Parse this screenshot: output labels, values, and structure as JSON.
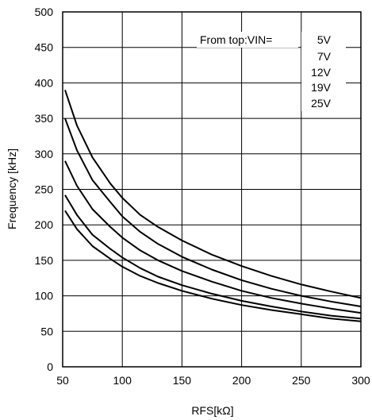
{
  "chart_data": {
    "type": "line",
    "xlabel": "RFS[kΩ]",
    "ylabel": "Frequency [kHz]",
    "xlim": [
      50,
      300
    ],
    "ylim": [
      0,
      500
    ],
    "xticks": [
      50,
      100,
      150,
      200,
      250,
      300
    ],
    "yticks": [
      0,
      50,
      100,
      150,
      200,
      250,
      300,
      350,
      400,
      450,
      500
    ],
    "grid": true,
    "annotation": {
      "prefix": "From top:VIN=",
      "labels": [
        "5V",
        "7V",
        "12V",
        "19V",
        "25V"
      ]
    },
    "series": [
      {
        "label": "5V",
        "x": [
          52,
          62,
          75,
          90,
          100,
          115,
          130,
          150,
          175,
          200,
          225,
          250,
          275,
          300
        ],
        "y": [
          390,
          340,
          295,
          258,
          238,
          214,
          197,
          178,
          158,
          142,
          128,
          116,
          106,
          97
        ]
      },
      {
        "label": "7V",
        "x": [
          52,
          62,
          75,
          90,
          100,
          115,
          130,
          150,
          175,
          200,
          225,
          250,
          275,
          300
        ],
        "y": [
          350,
          305,
          263,
          232,
          212,
          190,
          173,
          155,
          137,
          122,
          110,
          100,
          92,
          85
        ]
      },
      {
        "label": "12V",
        "x": [
          52,
          62,
          75,
          90,
          100,
          115,
          130,
          150,
          175,
          200,
          225,
          250,
          275,
          300
        ],
        "y": [
          290,
          255,
          222,
          197,
          182,
          164,
          150,
          135,
          120,
          107,
          97,
          89,
          82,
          76
        ]
      },
      {
        "label": "19V",
        "x": [
          52,
          62,
          75,
          90,
          100,
          115,
          130,
          150,
          175,
          200,
          225,
          250,
          275,
          300
        ],
        "y": [
          242,
          214,
          186,
          166,
          154,
          139,
          127,
          115,
          103,
          93,
          85,
          78,
          72,
          68
        ]
      },
      {
        "label": "25V",
        "x": [
          52,
          62,
          75,
          90,
          100,
          115,
          130,
          150,
          175,
          200,
          225,
          250,
          275,
          300
        ],
        "y": [
          220,
          194,
          170,
          152,
          141,
          128,
          118,
          107,
          96,
          87,
          80,
          74,
          68,
          64
        ]
      }
    ]
  }
}
